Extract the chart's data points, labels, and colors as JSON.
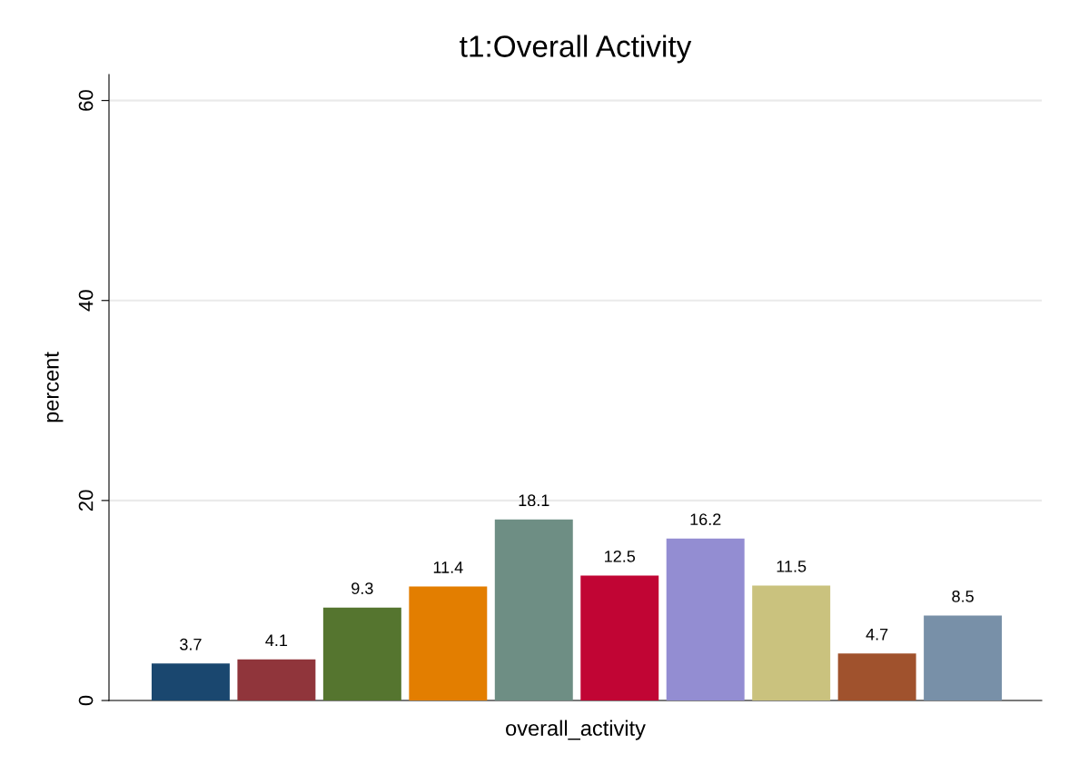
{
  "chart_data": {
    "type": "bar",
    "title": "t1:Overall Activity",
    "xlabel": "overall_activity",
    "ylabel": "percent",
    "categories": [
      null,
      null,
      null,
      null,
      null,
      null,
      null,
      null,
      null,
      null
    ],
    "values": [
      3.7,
      4.1,
      9.3,
      11.4,
      18.1,
      12.5,
      16.2,
      11.5,
      4.7,
      8.5
    ],
    "colors": [
      "#1a476f",
      "#90353b",
      "#55752f",
      "#e37e00",
      "#6e8e84",
      "#c10534",
      "#938dd2",
      "#cac27e",
      "#a0522d",
      "#7890a8"
    ],
    "ylim": [
      0,
      62.6
    ],
    "yticks": [
      0,
      20,
      40,
      60
    ],
    "grid": "y",
    "data_labels": true,
    "legend": false
  }
}
